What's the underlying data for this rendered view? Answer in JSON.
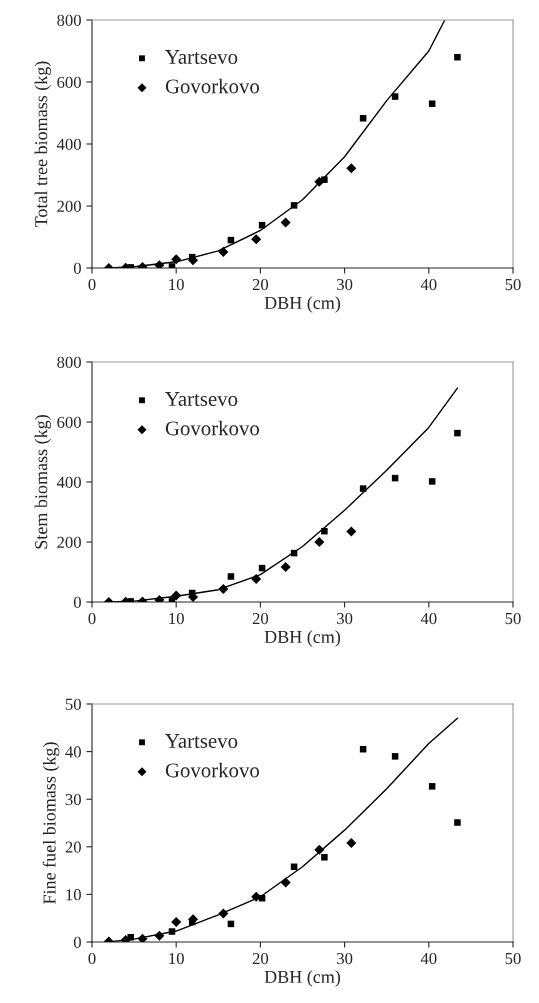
{
  "chart_data": [
    {
      "type": "scatter",
      "xlabel": "DBH (cm)",
      "ylabel": "Total tree biomass (kg)",
      "xlim": [
        0,
        50
      ],
      "xticks": [
        0,
        10,
        20,
        30,
        40,
        50
      ],
      "ylim": [
        0,
        800
      ],
      "yticks": [
        0,
        200,
        400,
        600,
        800
      ],
      "grid": false,
      "legend": "top left",
      "series": [
        {
          "name": "Yartsevo",
          "color": "#000000",
          "marker": "square",
          "x": [
            4.6,
            9.5,
            11.9,
            16.5,
            20.2,
            24,
            27.6,
            32.2,
            36,
            40.4,
            43.4
          ],
          "values": [
            2,
            5,
            35,
            90,
            138,
            202,
            285,
            483,
            553,
            530,
            680
          ]
        },
        {
          "name": "Govorkovo",
          "color": "#000000",
          "marker": "diamond",
          "x": [
            2,
            4,
            6,
            8,
            10,
            12,
            15.6,
            19.5,
            23,
            27,
            30.8
          ],
          "values": [
            0,
            1,
            3,
            9,
            28,
            25,
            52,
            93,
            147,
            278,
            322
          ]
        },
        {
          "type": "line",
          "color": "#000000",
          "marker": "none",
          "line_style": "solid",
          "x": [
            2,
            5,
            10,
            15,
            20,
            25,
            30,
            35,
            40,
            41.9
          ],
          "values": [
            0,
            4,
            20,
            55,
            121,
            220,
            359,
            540,
            700,
            800
          ]
        }
      ]
    },
    {
      "type": "scatter",
      "xlabel": "DBH (cm)",
      "ylabel": "Stem biomass (kg)",
      "xlim": [
        0,
        50
      ],
      "xticks": [
        0,
        10,
        20,
        30,
        40,
        50
      ],
      "ylim": [
        0,
        800
      ],
      "yticks": [
        0,
        200,
        400,
        600,
        800
      ],
      "grid": false,
      "legend": "top left",
      "series": [
        {
          "name": "Yartsevo",
          "color": "#000000",
          "marker": "square",
          "x": [
            4.6,
            9.5,
            11.9,
            16.5,
            20.2,
            24,
            27.6,
            32.2,
            36,
            40.4,
            43.4
          ],
          "values": [
            2,
            5,
            30,
            85,
            113,
            163,
            236,
            378,
            413,
            402,
            563
          ]
        },
        {
          "name": "Govorkovo",
          "color": "#000000",
          "marker": "diamond",
          "x": [
            2,
            4,
            6,
            8,
            10,
            12,
            15.6,
            19.5,
            23,
            27,
            30.8
          ],
          "values": [
            0,
            1,
            2,
            7,
            22,
            17,
            43,
            77,
            117,
            200,
            235
          ]
        },
        {
          "type": "line",
          "color": "#000000",
          "marker": "none",
          "line_style": "solid",
          "x": [
            2,
            5,
            10,
            15,
            20,
            25,
            30,
            35,
            40,
            43.4
          ],
          "values": [
            0,
            3,
            19,
            41,
            91,
            185,
            306,
            439,
            582,
            713
          ]
        }
      ]
    },
    {
      "type": "scatter",
      "xlabel": "DBH (cm)",
      "ylabel": "Fine fuel biomass (kg)",
      "xlim": [
        0,
        50
      ],
      "xticks": [
        0,
        10,
        20,
        30,
        40,
        50
      ],
      "ylim": [
        0,
        50
      ],
      "yticks": [
        0,
        10,
        20,
        30,
        40,
        50
      ],
      "grid": false,
      "legend": "top left",
      "series": [
        {
          "name": "Yartsevo",
          "color": "#000000",
          "marker": "square",
          "x": [
            4.6,
            9.5,
            11.9,
            16.5,
            20.2,
            24,
            27.6,
            32.2,
            36,
            40.4,
            43.4
          ],
          "values": [
            1.0,
            2.2,
            4.2,
            3.8,
            9.2,
            15.8,
            17.8,
            40.5,
            39,
            32.7,
            25.1
          ]
        },
        {
          "name": "Govorkovo",
          "color": "#000000",
          "marker": "diamond",
          "x": [
            2,
            4,
            6,
            8,
            10,
            12,
            15.6,
            19.5,
            23,
            27,
            30.8
          ],
          "values": [
            0.1,
            0.4,
            0.7,
            1.3,
            4.2,
            4.8,
            6,
            9.5,
            12.5,
            19.4,
            20.8
          ]
        },
        {
          "type": "line",
          "color": "#000000",
          "marker": "none",
          "line_style": "solid",
          "x": [
            2,
            5,
            10,
            15,
            20,
            25,
            30,
            35,
            40,
            43.4
          ],
          "values": [
            0,
            0.6,
            2.3,
            5.7,
            9.5,
            15.8,
            23.5,
            32.2,
            41.7,
            47
          ]
        }
      ]
    }
  ]
}
